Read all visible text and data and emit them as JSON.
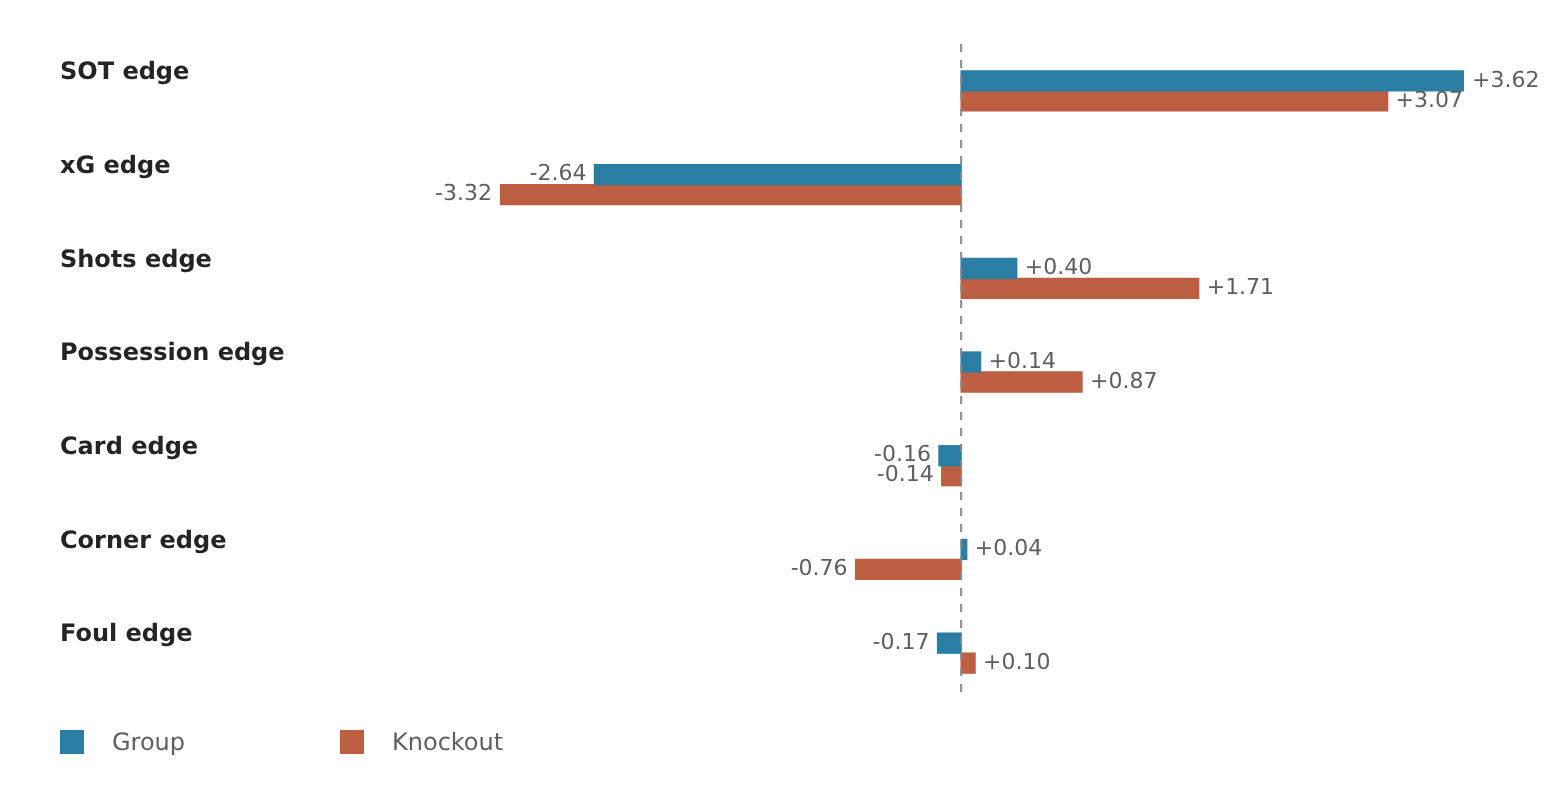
{
  "chart_data": {
    "type": "bar",
    "orientation": "horizontal",
    "categories": [
      "SOT edge",
      "xG edge",
      "Shots edge",
      "Possession edge",
      "Card edge",
      "Corner edge",
      "Foul edge"
    ],
    "series": [
      {
        "name": "Group",
        "color": "#2a7ea3",
        "values": [
          3.62,
          -2.64,
          0.4,
          0.14,
          -0.16,
          0.04,
          -0.17
        ],
        "value_labels": [
          "+3.62",
          "-2.64",
          "+0.40",
          "+0.14",
          "-0.16",
          "+0.04",
          "-0.17"
        ]
      },
      {
        "name": "Knockout",
        "color": "#bb5e41",
        "values": [
          3.07,
          -3.32,
          1.71,
          0.87,
          -0.14,
          -0.76,
          0.1
        ],
        "value_labels": [
          "+3.07",
          "-3.32",
          "+1.71",
          "+0.87",
          "-0.14",
          "-0.76",
          "+0.10"
        ]
      }
    ],
    "ref_lines": [
      {
        "axis": "x",
        "value": 0,
        "color": "#888888",
        "line_style": "dashed"
      }
    ],
    "legend": "bottom left"
  }
}
